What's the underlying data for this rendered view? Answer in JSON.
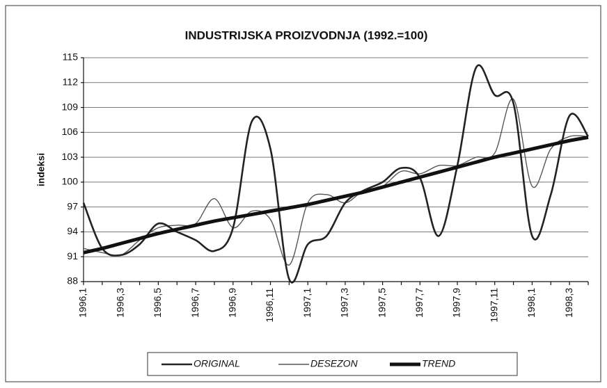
{
  "chart_data": {
    "type": "line",
    "title": "INDUSTRIJSKA PROIZVODNJA (1992.=100)",
    "y_label": "indeksi",
    "categories": [
      "1996,1",
      null,
      "1996,3",
      null,
      "1996,5",
      null,
      "1996,7",
      null,
      "1996,9",
      null,
      "1996,11",
      null,
      "1997,1",
      null,
      "1997,3",
      null,
      "1997,5",
      null,
      "1997,7",
      null,
      "1997,9",
      null,
      "1997,11",
      null,
      "1998,1",
      null,
      "1998,3",
      null
    ],
    "series": [
      {
        "name": "ORIGINAL",
        "color": "#222222",
        "values": [
          97.5,
          92,
          91.2,
          92.5,
          95,
          94,
          93,
          91.7,
          94.5,
          107.3,
          104,
          88.3,
          92.5,
          93.5,
          97.5,
          99,
          100,
          101.7,
          100.5,
          93.5,
          102,
          113.8,
          110.5,
          109.5,
          93.5,
          98.5,
          108,
          105.5
        ]
      },
      {
        "name": "DESEZON",
        "color": "#555555",
        "values": [
          92,
          91.5,
          91.2,
          93,
          94.5,
          94.8,
          95,
          98,
          94.5,
          96.5,
          95.5,
          90,
          97.5,
          98.5,
          97.5,
          99,
          99.5,
          101.3,
          101,
          102,
          102,
          103,
          103.5,
          110,
          99.5,
          104,
          105.5,
          105.5
        ]
      },
      {
        "name": "TREND",
        "color": "#111111",
        "values": [
          91.5,
          92,
          92.6,
          93.2,
          93.8,
          94.3,
          94.8,
          95.3,
          95.7,
          96.1,
          96.5,
          96.9,
          97.3,
          97.8,
          98.3,
          98.8,
          99.4,
          100,
          100.6,
          101.2,
          101.8,
          102.4,
          103,
          103.5,
          104,
          104.5,
          105,
          105.4
        ]
      }
    ],
    "ylim": [
      88,
      115
    ],
    "yticks": [
      88,
      91,
      94,
      97,
      100,
      103,
      106,
      109,
      112,
      115
    ],
    "grid": true,
    "legend": "bottom"
  }
}
